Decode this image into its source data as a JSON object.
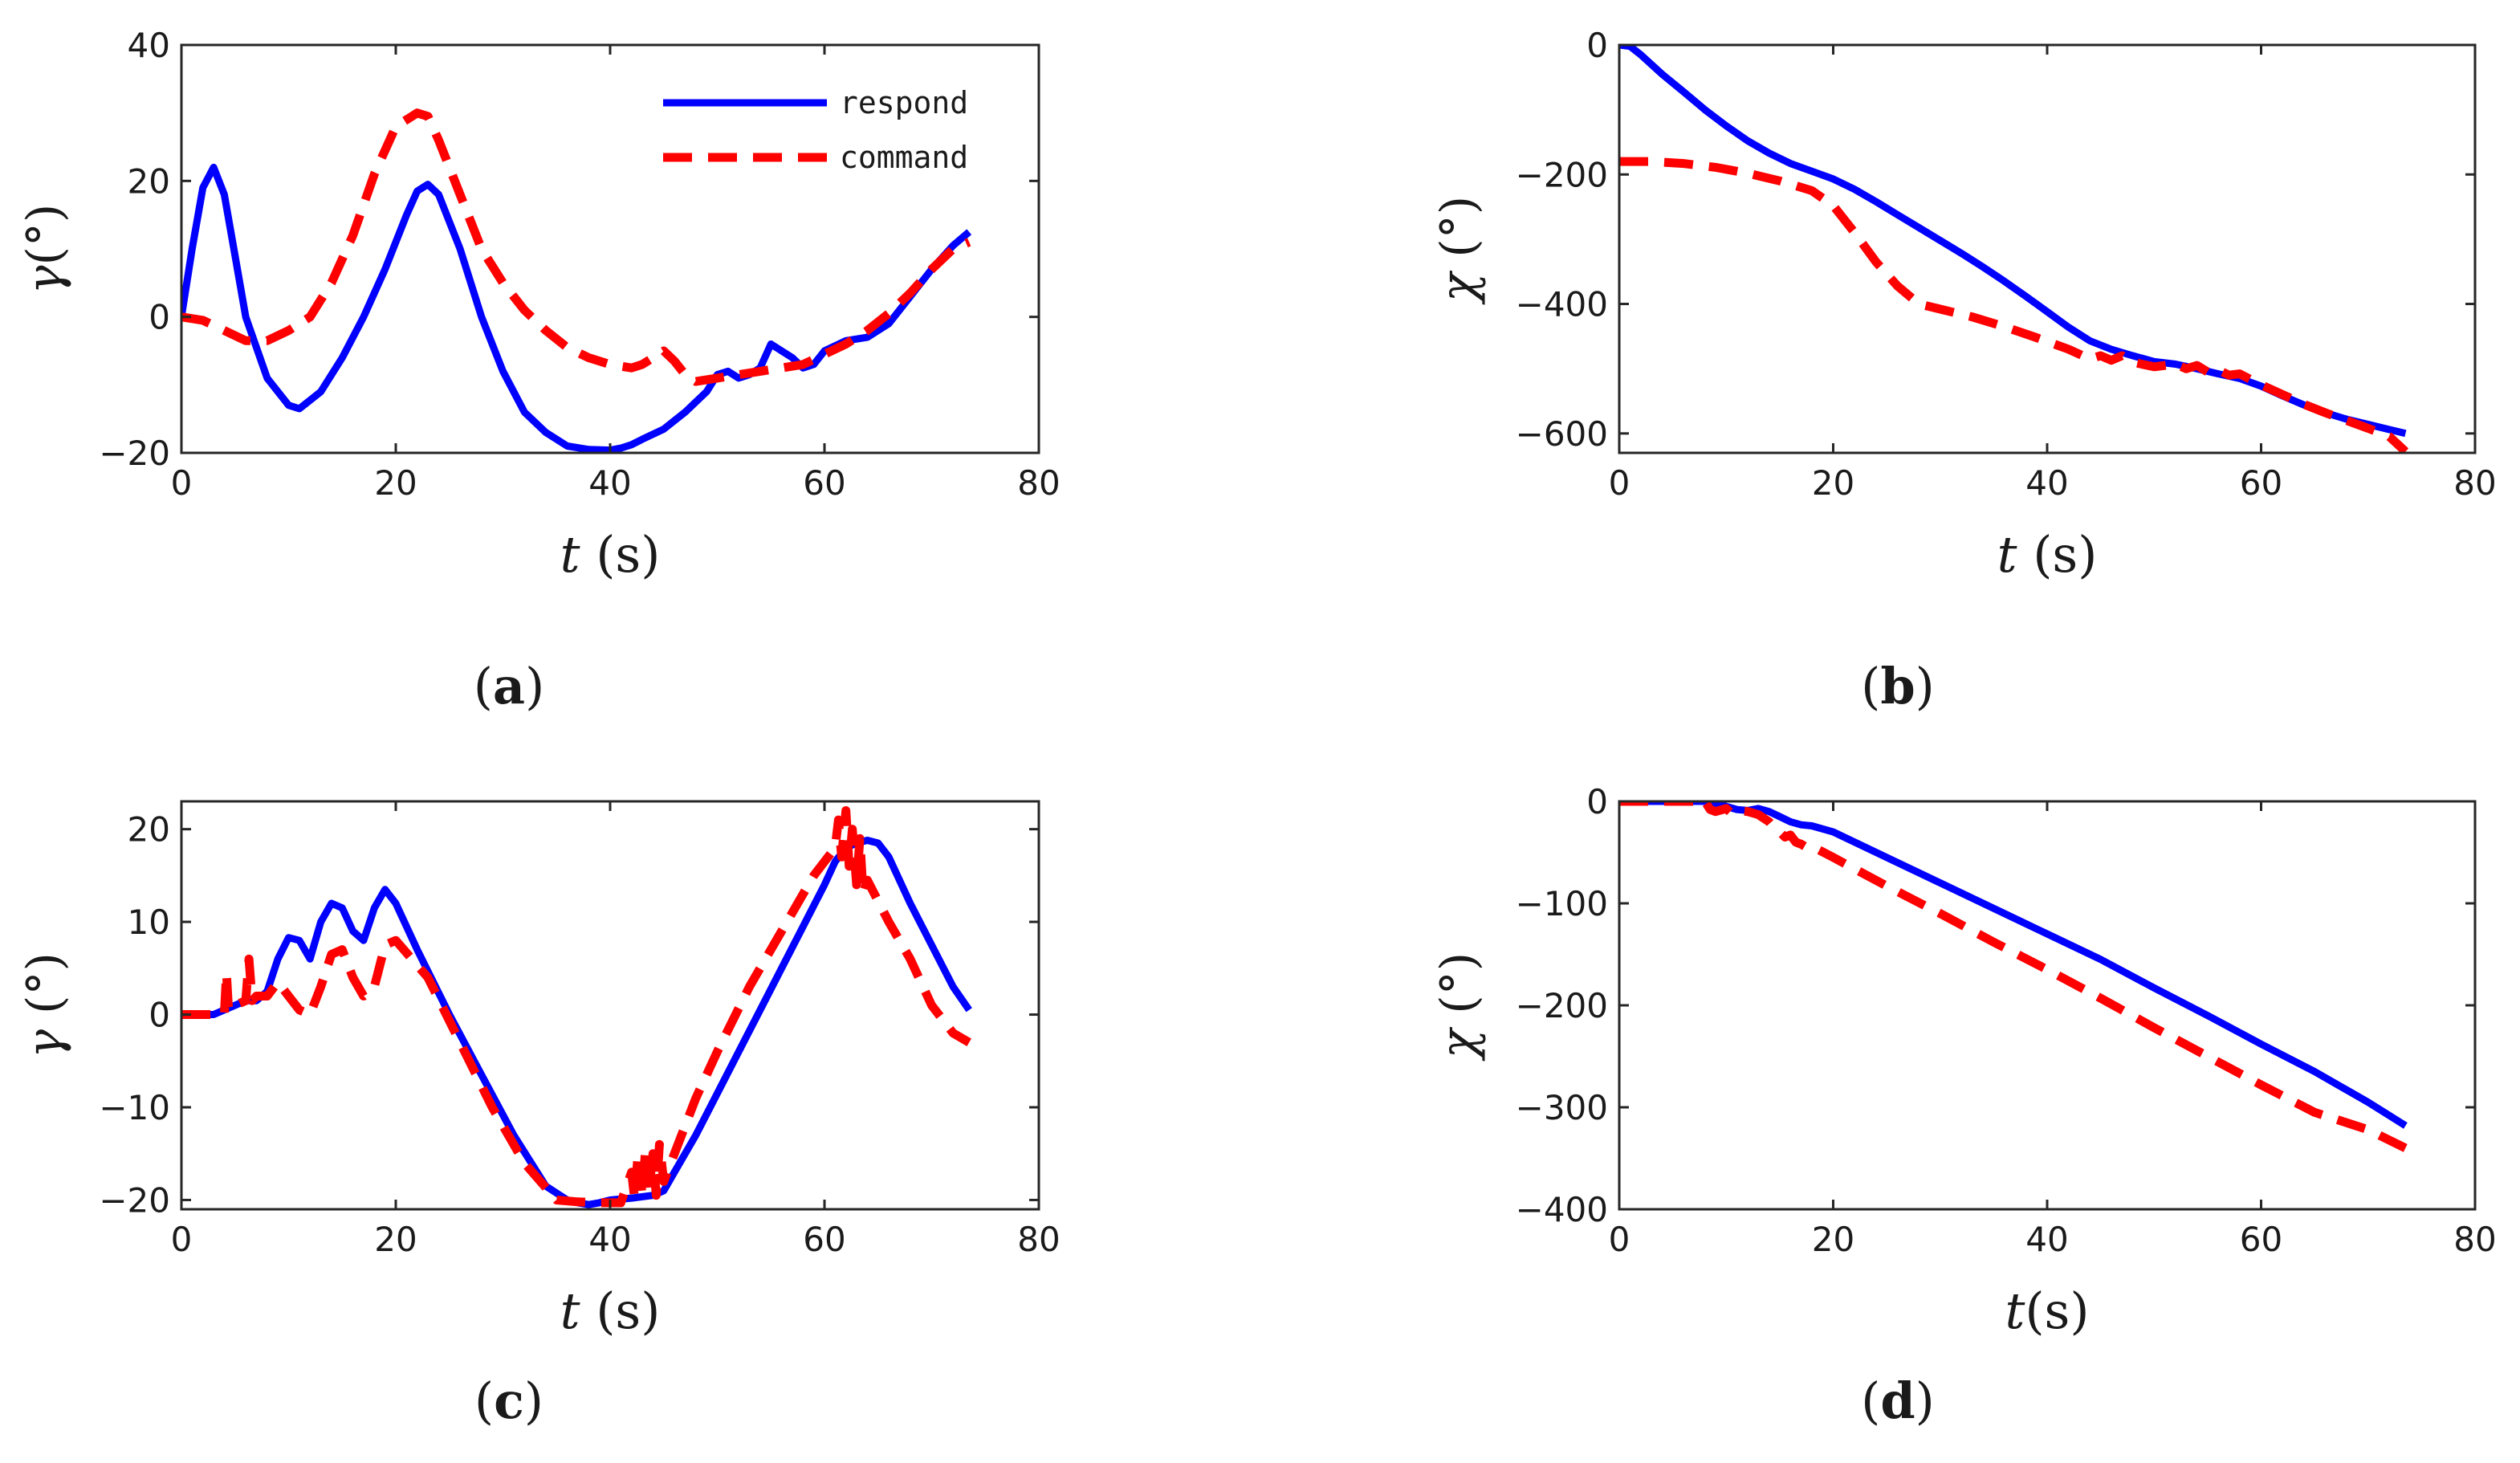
{
  "chart_data": [
    {
      "type": "line",
      "panel": "a",
      "caption_letter": "a",
      "ylabel_symbol": "γ",
      "ylabel_unit": "(°)",
      "xlabel_symbol": "t",
      "xlabel_unit": " (s)",
      "xlim": [
        0,
        80
      ],
      "ylim": [
        -20,
        40
      ],
      "xticks": [
        0,
        20,
        40,
        60,
        80
      ],
      "yticks": [
        -20,
        0,
        20,
        40
      ],
      "xtick_labels": [
        "0",
        "20",
        "40",
        "60",
        "80"
      ],
      "ytick_labels": [
        "−20",
        "0",
        "20",
        "40"
      ],
      "legend": {
        "location": "top-right",
        "entries": [
          "respond",
          "command"
        ]
      },
      "series": [
        {
          "name": "respond",
          "color": "#0000ff",
          "style": "solid",
          "x": [
            0,
            1,
            2,
            3,
            4,
            5,
            6,
            8,
            10,
            11,
            13,
            15,
            17,
            19,
            21,
            22,
            23,
            24,
            26,
            28,
            30,
            32,
            34,
            36,
            38,
            40,
            41,
            42,
            43,
            45,
            47,
            49,
            50,
            51,
            52,
            53,
            54,
            55,
            56,
            57,
            58,
            59,
            60,
            62,
            64,
            66,
            68,
            70,
            72,
            73.5
          ],
          "y": [
            0,
            10,
            19,
            22,
            18,
            9,
            0,
            -9,
            -13,
            -13.5,
            -11,
            -6,
            0,
            7,
            15,
            18.5,
            19.5,
            18,
            10,
            0,
            -8,
            -14,
            -17,
            -19,
            -19.5,
            -19.6,
            -19.3,
            -18.8,
            -18,
            -16.5,
            -14,
            -11,
            -8.5,
            -8,
            -9,
            -8.5,
            -7.5,
            -4,
            -5,
            -6,
            -7.5,
            -7,
            -5,
            -3.5,
            -3,
            -1,
            3,
            7,
            10.5,
            12.5
          ]
        },
        {
          "name": "command",
          "color": "#ff0000",
          "style": "dashed",
          "x": [
            0,
            2,
            4,
            6,
            8,
            10,
            12,
            14,
            16,
            18,
            20,
            22,
            23,
            24,
            26,
            28,
            30,
            32,
            34,
            36,
            38,
            40,
            42,
            43,
            44,
            45,
            46,
            47,
            48,
            50,
            52,
            54,
            56,
            58,
            60,
            62,
            64,
            66,
            68,
            70,
            72,
            73.5
          ],
          "y": [
            0,
            -0.5,
            -2,
            -3.5,
            -3.5,
            -2,
            0,
            5,
            12,
            21,
            28,
            30,
            29.5,
            26,
            18,
            10,
            5,
            1,
            -2,
            -4.5,
            -6,
            -7,
            -7.5,
            -7,
            -6,
            -5,
            -6.5,
            -8.5,
            -9.5,
            -9,
            -8.5,
            -8,
            -7.5,
            -7,
            -5.5,
            -4,
            -2,
            0.5,
            3.5,
            7,
            10,
            11
          ]
        }
      ]
    },
    {
      "type": "line",
      "panel": "b",
      "caption_letter": "b",
      "ylabel_symbol": "χ",
      "ylabel_unit": " (°)",
      "xlabel_symbol": "t",
      "xlabel_unit": " (s)",
      "xlim": [
        0,
        80
      ],
      "ylim": [
        -630,
        0
      ],
      "xticks": [
        0,
        20,
        40,
        60,
        80
      ],
      "yticks": [
        -600,
        -400,
        -200,
        0
      ],
      "xtick_labels": [
        "0",
        "20",
        "40",
        "60",
        "80"
      ],
      "ytick_labels": [
        "−600",
        "−400",
        "−200",
        "0"
      ],
      "series": [
        {
          "name": "respond",
          "color": "#0000ff",
          "style": "solid",
          "x": [
            0,
            1,
            2,
            3,
            4,
            6,
            8,
            10,
            12,
            14,
            16,
            18,
            20,
            22,
            24,
            26,
            28,
            30,
            32,
            34,
            36,
            38,
            40,
            42,
            44,
            46,
            48,
            50,
            52,
            54,
            56,
            58,
            60,
            62,
            64,
            66,
            68,
            70,
            72,
            73.5
          ],
          "y": [
            0,
            -2,
            -15,
            -30,
            -45,
            -72,
            -100,
            -125,
            -148,
            -167,
            -183,
            -195,
            -207,
            -223,
            -242,
            -262,
            -282,
            -302,
            -322,
            -343,
            -365,
            -388,
            -412,
            -436,
            -457,
            -470,
            -480,
            -489,
            -493,
            -500,
            -508,
            -515,
            -527,
            -542,
            -556,
            -568,
            -578,
            -586,
            -594,
            -600
          ]
        },
        {
          "name": "command",
          "color": "#ff0000",
          "style": "dashed",
          "x": [
            0,
            3,
            6,
            9,
            12,
            15,
            18,
            20,
            22,
            24,
            26,
            28,
            30,
            33,
            36,
            39,
            42,
            44,
            45,
            46,
            47,
            48,
            50,
            52,
            53,
            54,
            55,
            56,
            57,
            58,
            60,
            62,
            64,
            66,
            68,
            70,
            72,
            73.5
          ],
          "y": [
            -180,
            -180,
            -183,
            -189,
            -198,
            -210,
            -225,
            -248,
            -290,
            -335,
            -372,
            -400,
            -408,
            -420,
            -435,
            -452,
            -470,
            -485,
            -480,
            -487,
            -480,
            -490,
            -497,
            -493,
            -500,
            -495,
            -505,
            -502,
            -510,
            -508,
            -525,
            -540,
            -555,
            -568,
            -580,
            -592,
            -605,
            -628
          ]
        }
      ]
    },
    {
      "type": "line",
      "panel": "c",
      "caption_letter": "c",
      "ylabel_symbol": "γ",
      "ylabel_unit": " (°)",
      "xlabel_symbol": "t",
      "xlabel_unit": " (s)",
      "xlim": [
        0,
        80
      ],
      "ylim": [
        -21,
        23
      ],
      "xticks": [
        0,
        20,
        40,
        60,
        80
      ],
      "yticks": [
        -20,
        -10,
        0,
        10,
        20
      ],
      "xtick_labels": [
        "0",
        "20",
        "40",
        "60",
        "80"
      ],
      "ytick_labels": [
        "−20",
        "−10",
        "0",
        "10",
        "20"
      ],
      "series": [
        {
          "name": "respond",
          "color": "#0000ff",
          "style": "solid",
          "x": [
            0,
            3,
            4,
            5,
            6,
            7,
            8,
            9,
            10,
            11,
            12,
            13,
            14,
            15,
            16,
            17,
            18,
            19,
            20,
            22,
            25,
            28,
            31,
            34,
            36,
            37,
            38,
            39,
            40,
            42,
            44,
            45,
            46,
            48,
            50,
            52,
            54,
            56,
            58,
            60,
            61,
            62,
            63,
            64,
            65,
            66,
            68,
            70,
            72,
            73.5
          ],
          "y": [
            0,
            0,
            0.5,
            1,
            1.5,
            1.5,
            2.5,
            6,
            8.3,
            8,
            6,
            10,
            12,
            11.5,
            9,
            8,
            11.5,
            13.5,
            12,
            7,
            0,
            -6.5,
            -13,
            -18.5,
            -20,
            -20.3,
            -20.5,
            -20.3,
            -20,
            -19.8,
            -19.5,
            -19,
            -17,
            -13,
            -8.5,
            -4,
            0.5,
            5,
            9.5,
            14,
            16.5,
            18,
            18.5,
            18.8,
            18.5,
            17,
            12,
            7.5,
            3,
            0.5
          ]
        },
        {
          "name": "command",
          "color": "#ff0000",
          "style": "dashed",
          "x": [
            0,
            3,
            4,
            4.2,
            4.4,
            5,
            6,
            6.3,
            6.6,
            7,
            8,
            9,
            10,
            11,
            12,
            13,
            14,
            15,
            16,
            17,
            18,
            19,
            20,
            23,
            26,
            29,
            32,
            35,
            37,
            39,
            41,
            42,
            42.3,
            42.6,
            43,
            43.3,
            43.6,
            44,
            44.3,
            44.6,
            45,
            46,
            48,
            50,
            53,
            56,
            59,
            61,
            61.3,
            61.6,
            62,
            62.3,
            62.6,
            63,
            63.3,
            63.6,
            64,
            66,
            68,
            70,
            72,
            73.5
          ],
          "y": [
            0,
            0,
            0,
            4.5,
            0.5,
            1,
            1.5,
            6,
            1.5,
            2,
            2,
            3.5,
            2,
            0.5,
            0,
            3,
            6.5,
            7,
            4,
            2,
            3,
            7.5,
            8,
            4,
            -3,
            -10,
            -16,
            -20,
            -20.2,
            -20.3,
            -20.3,
            -17,
            -20,
            -15,
            -19.5,
            -14.5,
            -19,
            -15,
            -19.5,
            -14,
            -18,
            -15,
            -9,
            -4,
            3,
            9,
            15,
            18,
            21,
            17,
            22,
            16,
            20,
            14,
            19,
            13,
            14.5,
            10,
            6,
            1,
            -2,
            -3
          ]
        }
      ]
    },
    {
      "type": "line",
      "panel": "d",
      "caption_letter": "d",
      "ylabel_symbol": "χ",
      "ylabel_unit": " (°)",
      "xlabel_symbol": "t",
      "xlabel_unit": "(s)",
      "xlim": [
        0,
        80
      ],
      "ylim": [
        -400,
        0
      ],
      "xticks": [
        0,
        20,
        40,
        60,
        80
      ],
      "yticks": [
        -400,
        -300,
        -200,
        -100,
        0
      ],
      "xtick_labels": [
        "0",
        "20",
        "40",
        "60",
        "80"
      ],
      "ytick_labels": [
        "−400",
        "−300",
        "−200",
        "−100",
        "0"
      ],
      "series": [
        {
          "name": "respond",
          "color": "#0000ff",
          "style": "solid",
          "x": [
            0,
            8,
            9,
            10,
            11,
            12,
            13,
            14,
            15,
            16,
            17,
            18,
            20,
            25,
            30,
            35,
            40,
            45,
            50,
            55,
            60,
            65,
            70,
            73.5
          ],
          "y": [
            0,
            0,
            -2,
            -5,
            -8,
            -9,
            -7,
            -10,
            -15,
            -20,
            -23,
            -24,
            -30,
            -55,
            -80,
            -105,
            -130,
            -155,
            -183,
            -210,
            -238,
            -265,
            -295,
            -318
          ]
        },
        {
          "name": "command",
          "color": "#ff0000",
          "style": "dashed",
          "x": [
            0,
            7,
            7.5,
            8,
            8.5,
            9,
            10,
            10.5,
            11,
            12,
            13,
            14,
            14.5,
            15,
            15.5,
            16,
            16.5,
            17,
            17.5,
            18,
            20,
            25,
            30,
            35,
            40,
            45,
            50,
            55,
            60,
            65,
            70,
            73.5
          ],
          "y": [
            0,
            0,
            -3,
            0,
            -8,
            -10,
            -7,
            -12,
            -9,
            -10,
            -13,
            -20,
            -26,
            -30,
            -35,
            -33,
            -40,
            -42,
            -45,
            -44,
            -55,
            -83,
            -110,
            -138,
            -165,
            -193,
            -222,
            -250,
            -278,
            -305,
            -322,
            -340
          ]
        }
      ]
    }
  ]
}
